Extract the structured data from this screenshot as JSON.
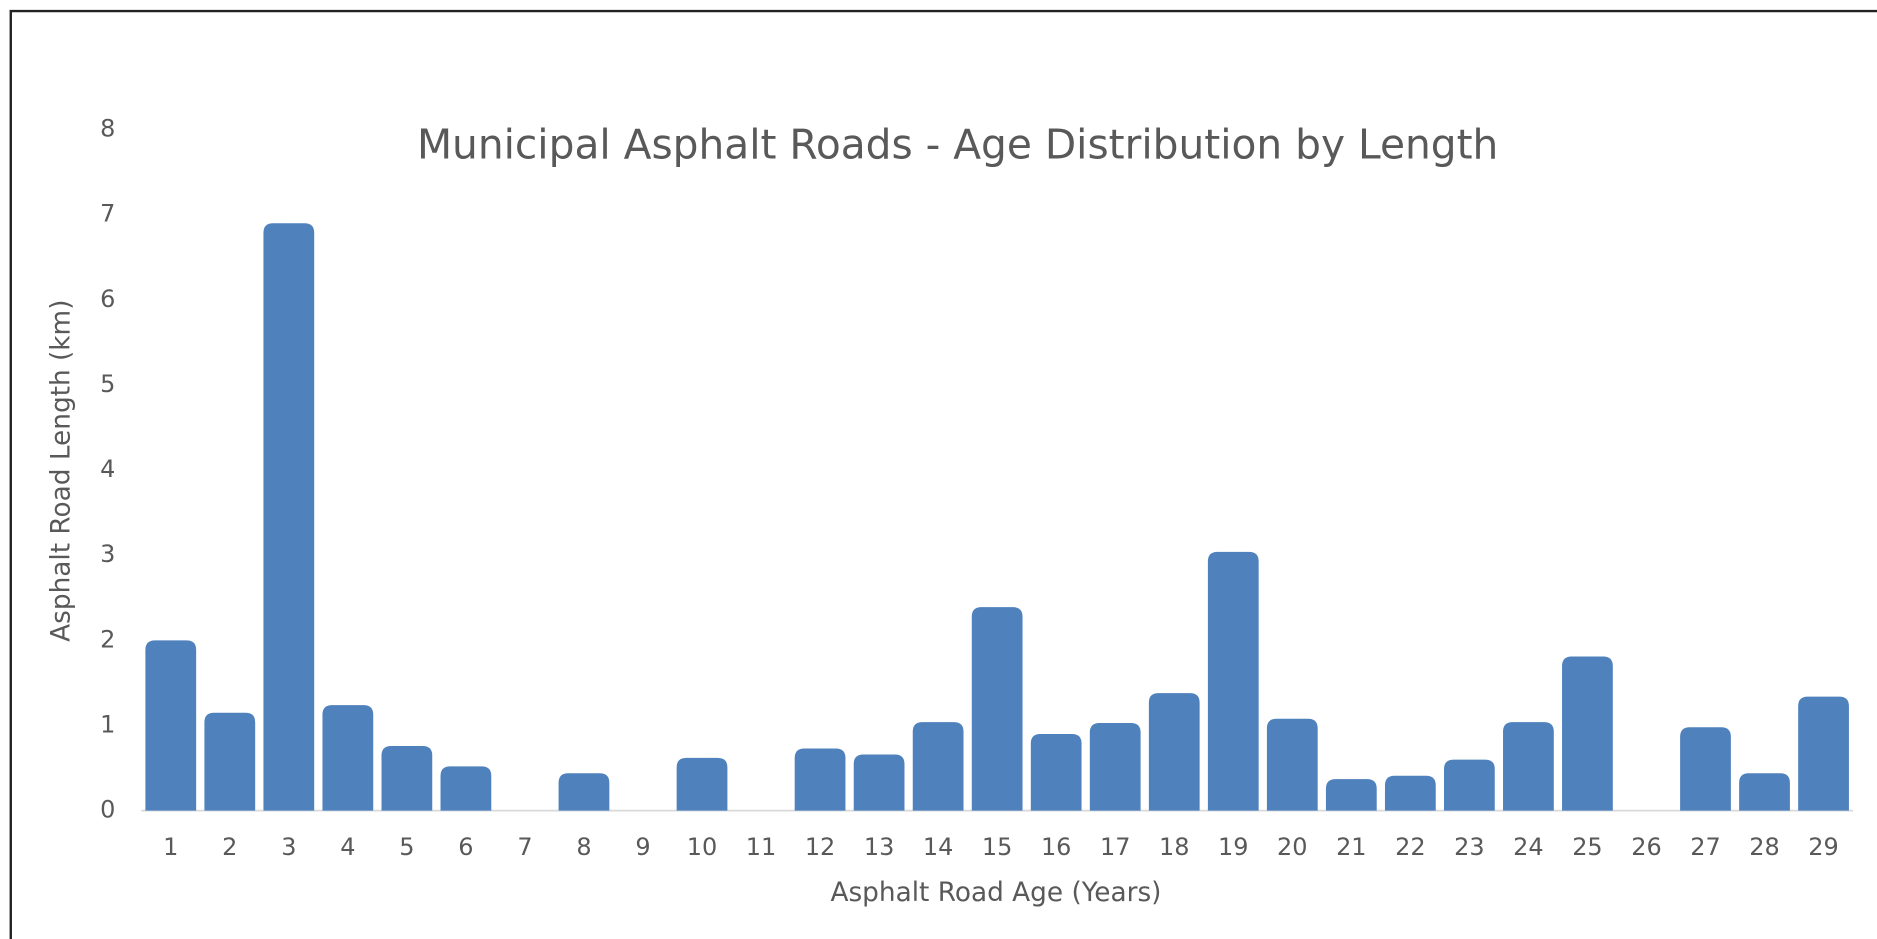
{
  "chart_data": {
    "type": "bar",
    "title": "Municipal Asphalt Roads - Age Distribution by Length",
    "x_label": "Asphalt Road Age (Years)",
    "y_label": "Asphalt Road Length (km)",
    "categories": [
      "1",
      "2",
      "3",
      "4",
      "5",
      "6",
      "7",
      "8",
      "9",
      "10",
      "11",
      "12",
      "13",
      "14",
      "15",
      "16",
      "17",
      "18",
      "19",
      "20",
      "21",
      "22",
      "23",
      "24",
      "25",
      "26",
      "27",
      "28",
      "29"
    ],
    "values": [
      2.0,
      1.15,
      6.9,
      1.24,
      0.76,
      0.52,
      0,
      0.44,
      0,
      0.62,
      0,
      0.73,
      0.66,
      1.04,
      2.39,
      0.9,
      1.03,
      1.38,
      3.04,
      1.08,
      0.37,
      0.41,
      0.6,
      1.04,
      1.81,
      0,
      0.98,
      0.44,
      1.34
    ],
    "color": "#4f81bd",
    "ylim": [
      0,
      8
    ],
    "yticks": [
      0,
      1,
      2,
      3,
      4,
      5,
      6,
      7,
      8
    ],
    "grid": false
  }
}
